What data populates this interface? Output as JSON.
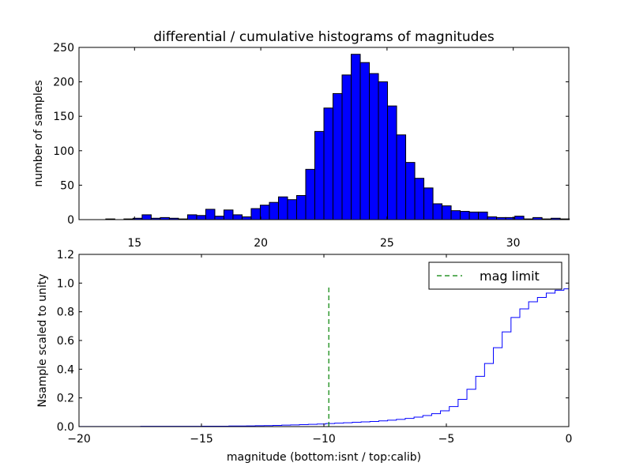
{
  "colors": {
    "bar_fill": "#0000ff",
    "bar_edge": "#000000",
    "step_line": "#0000ff",
    "mag_limit_line": "#008000",
    "axes": "#000000",
    "background": "#ffffff"
  },
  "chart_data": [
    {
      "type": "bar",
      "title": "differential / cumulative histograms of magnitudes",
      "xlabel": "",
      "ylabel": "number of samples",
      "xlim": [
        12.8,
        32.2
      ],
      "ylim": [
        0,
        250
      ],
      "xticks": [
        "15",
        "20",
        "25",
        "30"
      ],
      "yticks": [
        "0",
        "50",
        "100",
        "150",
        "200",
        "250"
      ],
      "grid": false,
      "bins": {
        "x_start": 13.5,
        "bin_width": 0.36,
        "values": [
          0,
          1,
          0,
          1,
          2,
          7,
          2,
          3,
          2,
          1,
          7,
          6,
          15,
          5,
          14,
          7,
          4,
          16,
          21,
          25,
          33,
          29,
          35,
          73,
          128,
          162,
          183,
          210,
          240,
          228,
          212,
          200,
          165,
          123,
          83,
          60,
          46,
          23,
          20,
          13,
          12,
          11,
          11,
          4,
          3,
          3,
          5,
          1,
          3,
          1,
          2,
          1
        ]
      }
    },
    {
      "type": "line",
      "title": "",
      "xlabel": "magnitude (bottom:isnt / top:calib)",
      "ylabel": "Nsample scaled to unity",
      "xlim": [
        -20,
        0
      ],
      "ylim": [
        0.0,
        1.2
      ],
      "xticks": [
        "−20",
        "−15",
        "−10",
        "−5",
        "0"
      ],
      "yticks": [
        "0.0",
        "0.2",
        "0.4",
        "0.6",
        "0.8",
        "1.0",
        "1.2"
      ],
      "grid": false,
      "legend": {
        "position": "top-right",
        "entries": [
          "mag limit"
        ]
      },
      "mag_limit": {
        "x": -9.8,
        "y_range": [
          0.0,
          0.97
        ]
      },
      "cumulative_step": {
        "x_start": -20.0,
        "bin_width": 0.36,
        "values": [
          0.001,
          0.001,
          0.001,
          0.001,
          0.001,
          0.001,
          0.001,
          0.002,
          0.002,
          0.002,
          0.002,
          0.002,
          0.002,
          0.002,
          0.003,
          0.003,
          0.003,
          0.004,
          0.004,
          0.005,
          0.006,
          0.007,
          0.008,
          0.01,
          0.012,
          0.014,
          0.016,
          0.018,
          0.021,
          0.024,
          0.027,
          0.03,
          0.033,
          0.036,
          0.04,
          0.045,
          0.05,
          0.057,
          0.066,
          0.077,
          0.09,
          0.11,
          0.14,
          0.19,
          0.26,
          0.35,
          0.44,
          0.55,
          0.66,
          0.76,
          0.82,
          0.87,
          0.9,
          0.93,
          0.95,
          0.96,
          0.97,
          0.977,
          0.983,
          0.987,
          0.99,
          0.992,
          0.994,
          0.996,
          0.997,
          0.998,
          0.999,
          1.0,
          1.0,
          1.0,
          1.0,
          1.0,
          1.0,
          1.0,
          1.0,
          1.0,
          1.0,
          1.0,
          1.0,
          1.0,
          1.0,
          1.0,
          1.0,
          1.0,
          1.0,
          1.0,
          1.0,
          1.0,
          1.0,
          1.0,
          1.0,
          1.0,
          1.0,
          1.0,
          1.0,
          1.0,
          1.0,
          1.0,
          1.0,
          1.0,
          1.0,
          1.0,
          1.0,
          1.0,
          1.0,
          1.0,
          1.0,
          1.0,
          1.0,
          1.0,
          1.0,
          1.0,
          1.0,
          1.0,
          1.0,
          1.0,
          1.0,
          1.0,
          1.0,
          1.0,
          1.0,
          1.0,
          1.0,
          1.0,
          1.0,
          1.0,
          1.0,
          1.0,
          1.0,
          1.0,
          1.0,
          1.0,
          1.0,
          1.0,
          1.0,
          1.0,
          1.0,
          1.0,
          1.0,
          1.0,
          1.0,
          1.0,
          1.0,
          1.0,
          1.0,
          1.0,
          1.0,
          1.0,
          1.0,
          1.0,
          1.0,
          1.0,
          1.0,
          1.0,
          1.0,
          1.0,
          1.0,
          1.0,
          1.0
        ]
      }
    }
  ]
}
